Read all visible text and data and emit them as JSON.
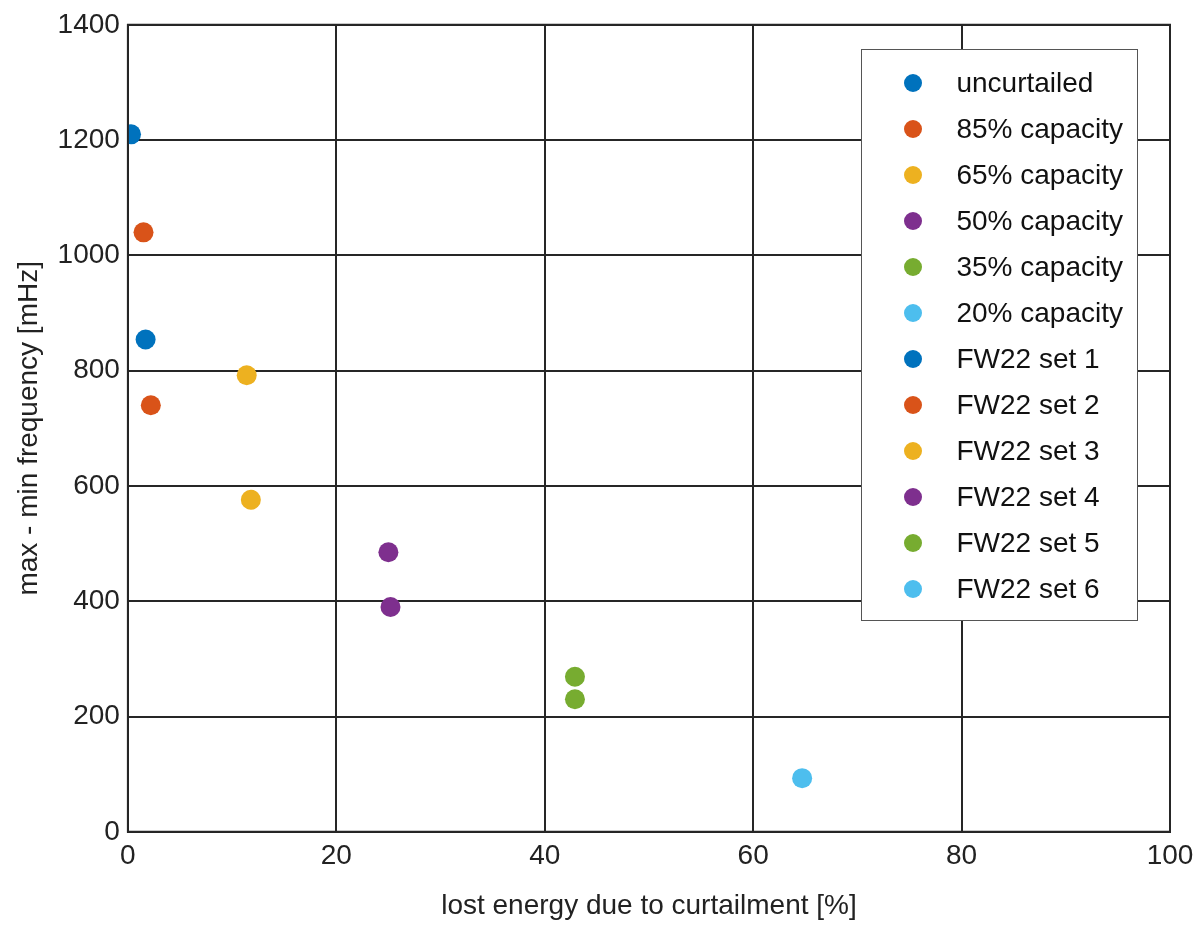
{
  "chart_data": {
    "type": "scatter",
    "xlabel": "lost energy due to curtailment [%]",
    "ylabel": "max - min frequency [mHz]",
    "xlim": [
      0,
      100
    ],
    "xticks": [
      0,
      20,
      40,
      60,
      80,
      100
    ],
    "ylim": [
      0,
      1400
    ],
    "yticks": [
      0,
      200,
      400,
      600,
      800,
      1000,
      1200,
      1400
    ],
    "grid": true,
    "legend": "top right",
    "marker": "circle",
    "series": [
      {
        "name": "uncurtailed",
        "color": "#0072bd",
        "x": [
          0.3
        ],
        "values": [
          1210
        ]
      },
      {
        "name": "85% capacity",
        "color": "#d95319",
        "x": [
          1.5
        ],
        "values": [
          1040
        ]
      },
      {
        "name": "65% capacity",
        "color": "#edb120",
        "x": [
          11.4
        ],
        "values": [
          792
        ]
      },
      {
        "name": "50% capacity",
        "color": "#7e2f8e",
        "x": [
          25
        ],
        "values": [
          485
        ]
      },
      {
        "name": "35% capacity",
        "color": "#77ac30",
        "x": [
          42.9
        ],
        "values": [
          269
        ]
      },
      {
        "name": "20% capacity",
        "color": "#4dbeee",
        "x": [
          64.7
        ],
        "values": [
          93
        ]
      },
      {
        "name": "FW22 set 1",
        "color": "#0072bd",
        "x": [
          1.7
        ],
        "values": [
          854
        ]
      },
      {
        "name": "FW22 set 2",
        "color": "#d95319",
        "x": [
          2.2
        ],
        "values": [
          740
        ]
      },
      {
        "name": "FW22 set 3",
        "color": "#edb120",
        "x": [
          11.8
        ],
        "values": [
          576
        ]
      },
      {
        "name": "FW22 set 4",
        "color": "#7e2f8e",
        "x": [
          25.2
        ],
        "values": [
          390
        ]
      },
      {
        "name": "FW22 set 5",
        "color": "#77ac30",
        "x": [
          42.9
        ],
        "values": [
          230
        ]
      },
      {
        "name": "FW22 set 6",
        "color": "#4dbeee"
      }
    ]
  }
}
